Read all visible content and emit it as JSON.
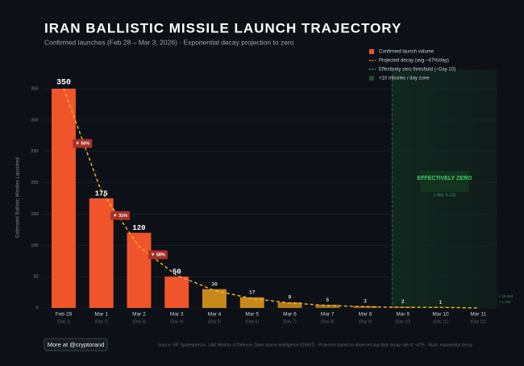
{
  "chart_data": {
    "type": "bar",
    "title": "IRAN BALLISTIC MISSILE LAUNCH TRAJECTORY",
    "subtitle": "Confirmed launches (Feb 28 – Mar 3, 2026) · Exponential decay projection to zero",
    "y_label": "Estimated Ballistic Missiles Launched",
    "categories": [
      "Feb 28",
      "Mar 1",
      "Mar 2",
      "Mar 3",
      "Mar 4",
      "Mar 5",
      "Mar 6",
      "Mar 7",
      "Mar 8",
      "Mar 9",
      "Mar 10",
      "Mar 11"
    ],
    "sublabels": [
      "(Day 1)",
      "(Day 2)",
      "(Day 3)",
      "(Day 4)",
      "(Day 5)",
      "(Day 6)",
      "(Day 7)",
      "(Day 8)",
      "(Day 9)",
      "(Day 10)",
      "(Day 11)",
      "(Day 12)"
    ],
    "bars": {
      "name": "Confirmed launch volume",
      "color": "#f0542a",
      "values": [
        350,
        175,
        120,
        50,
        30,
        17,
        9,
        5,
        3,
        2,
        1,
        null
      ],
      "colors": [
        "#f0542a",
        "#f0542a",
        "#f0542a",
        "#f0542a",
        "#c8891c",
        "#c8891c",
        "#b07a1a",
        "#a06e18",
        "#8f6416",
        "#7d5814",
        "#6d4d12",
        "#6d4d12"
      ]
    },
    "projection": {
      "name": "Projected decay (avg ~47%/day)",
      "color": "#f2b531",
      "values": [
        350,
        186,
        98,
        52,
        28,
        15,
        8,
        4,
        2,
        1,
        1,
        0
      ]
    },
    "threshold": {
      "name": "Effectively zero threshold (~Day 10)",
      "color": "#3ecf6a",
      "start_index": 9
    },
    "zone": {
      "name": "<10 missiles / day zone",
      "label": "EFFECTIVELY ZERO",
      "sublabel": "(~Mar 9–10)",
      "notes": [
        "< 10 msl",
        "≈ 1 msl"
      ]
    },
    "drops": [
      "▼ 50%",
      "▼ 31%",
      "▼ 58%"
    ],
    "ylim": [
      0,
      370
    ],
    "yticks": [
      0,
      50,
      100,
      150,
      200,
      250,
      300,
      350
    ],
    "grid": true,
    "button": "More at @cryptorand",
    "source": "Source: ISF Spokesperson, UAE Ministry of Defence, Open source intelligence (OSINT) · Projection based on observed avg daily decay rate of ~47% · Illustr. exponential decay"
  }
}
